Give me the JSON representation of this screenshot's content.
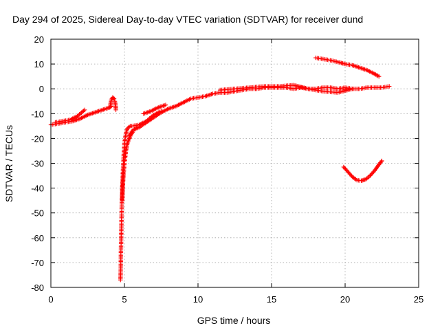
{
  "chart_data": {
    "type": "scatter",
    "title": "Day 294 of 2025, Sidereal Day-to-day VTEC variation (SDTVAR) for receiver dund",
    "xlabel": "GPS time / hours",
    "ylabel": "SDTVAR / TECUs",
    "xlim": [
      0,
      25
    ],
    "ylim": [
      -80,
      20
    ],
    "xticks": [
      0,
      5,
      10,
      15,
      20,
      25
    ],
    "yticks": [
      -80,
      -70,
      -60,
      -50,
      -40,
      -30,
      -20,
      -10,
      0,
      10,
      20
    ],
    "grid": true,
    "legend": "none",
    "marker": "+",
    "colors": {
      "series": "#ff0000",
      "grid": "#a0a0a0",
      "axes": "#000000"
    },
    "series": [
      {
        "name": "receiver dund",
        "segments": [
          {
            "x": [
              0.0,
              0.5,
              1.0,
              1.5,
              2.0,
              2.5,
              3.0,
              3.5,
              4.0,
              4.1
            ],
            "y": [
              -14.5,
              -14.0,
              -13.5,
              -13.0,
              -12.0,
              -10.5,
              -9.5,
              -8.5,
              -7.5,
              -7.0
            ]
          },
          {
            "x": [
              0.3,
              0.8,
              1.3,
              1.8,
              2.3
            ],
            "y": [
              -13.5,
              -13.0,
              -12.5,
              -11.0,
              -8.5
            ]
          },
          {
            "x": [
              4.05,
              4.1,
              4.2,
              4.3
            ],
            "y": [
              -6.5,
              -4.5,
              -3.5,
              -4.0
            ]
          },
          {
            "x": [
              4.35,
              4.4,
              4.42
            ],
            "y": [
              -5.0,
              -7.0,
              -8.5
            ]
          },
          {
            "x": [
              4.73,
              4.75,
              4.76,
              4.78,
              4.8,
              4.82,
              4.85,
              4.9,
              4.95,
              5.0,
              5.1,
              5.2,
              5.4
            ],
            "y": [
              -77.0,
              -72.0,
              -66.0,
              -60.0,
              -53.0,
              -47.0,
              -40.0,
              -33.0,
              -27.0,
              -22.0,
              -18.0,
              -16.0,
              -15.0
            ]
          },
          {
            "x": [
              4.85,
              4.9,
              5.0,
              5.1,
              5.2,
              5.4,
              5.6
            ],
            "y": [
              -45.0,
              -38.0,
              -30.0,
              -25.0,
              -22.0,
              -19.0,
              -17.0
            ]
          },
          {
            "x": [
              5.5,
              6.0,
              6.5,
              7.0,
              7.5
            ],
            "y": [
              -15.0,
              -14.5,
              -13.0,
              -10.5,
              -9.0
            ]
          },
          {
            "x": [
              5.3,
              5.6,
              6.0,
              6.5,
              7.0,
              7.5,
              8.0,
              8.5,
              9.0,
              9.5,
              10.0,
              10.5,
              11.0,
              11.5,
              12.0,
              12.5,
              13.0,
              13.5,
              14.0,
              14.5,
              15.0,
              15.5,
              16.0,
              16.5,
              17.0,
              17.5,
              18.0,
              18.5,
              19.0,
              19.5,
              20.0,
              20.5,
              21.0,
              21.5,
              22.0,
              22.5,
              23.0
            ],
            "y": [
              -19.0,
              -16.5,
              -15.5,
              -13.5,
              -11.5,
              -9.5,
              -8.0,
              -7.0,
              -5.5,
              -4.0,
              -3.5,
              -3.0,
              -2.0,
              -1.5,
              -1.5,
              -1.0,
              -0.5,
              0.0,
              0.0,
              0.5,
              0.5,
              0.5,
              0.5,
              0.0,
              0.5,
              0.0,
              0.0,
              0.5,
              0.5,
              0.0,
              0.5,
              0.0,
              0.0,
              0.5,
              0.5,
              0.5,
              1.0
            ]
          },
          {
            "x": [
              6.3,
              6.8,
              7.3,
              7.8
            ],
            "y": [
              -10.0,
              -9.0,
              -7.5,
              -6.5
            ]
          },
          {
            "x": [
              11.5,
              12.5,
              13.5,
              14.5,
              15.5,
              16.5,
              17.5,
              18.5,
              19.5,
              20.5
            ],
            "y": [
              -0.5,
              0.0,
              0.5,
              1.0,
              1.0,
              1.5,
              0.0,
              -1.0,
              -1.5,
              0.0
            ]
          },
          {
            "x": [
              18.0,
              18.5,
              19.0,
              19.5,
              20.0,
              20.5,
              21.0,
              21.5,
              22.0,
              22.3
            ],
            "y": [
              12.5,
              12.0,
              11.5,
              10.8,
              10.0,
              9.5,
              8.5,
              7.5,
              6.0,
              5.0
            ]
          },
          {
            "x": [
              19.9,
              20.2,
              20.5,
              20.8,
              21.1,
              21.4,
              21.7,
              22.0,
              22.3,
              22.5
            ],
            "y": [
              -31.5,
              -33.5,
              -35.5,
              -36.8,
              -37.0,
              -36.5,
              -35.0,
              -33.0,
              -30.5,
              -29.0
            ]
          }
        ]
      }
    ]
  }
}
